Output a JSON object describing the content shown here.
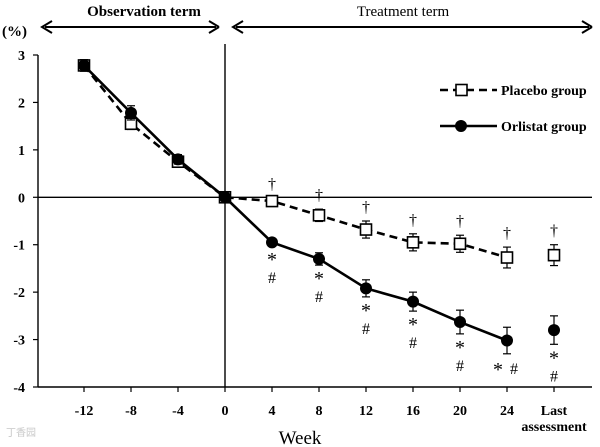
{
  "watermark": "丁香园",
  "chart_data": {
    "type": "line",
    "y_unit_label": "(%)",
    "xlabel": "Week",
    "ylabel": "",
    "ylim": [
      -4,
      3
    ],
    "yticks": [
      3,
      2,
      1,
      0,
      -1,
      -2,
      -3,
      -4
    ],
    "categories": [
      "-12",
      "-8",
      "-4",
      "0",
      "4",
      "8",
      "12",
      "16",
      "20",
      "24",
      "Last assessment"
    ],
    "period_labels": {
      "observation": "Observation term",
      "treatment": "Treatment term"
    },
    "legend_position": "top-right",
    "series": [
      {
        "name": "Placebo group",
        "style": "dashed",
        "marker": "open-square",
        "connect_last": false,
        "values": [
          2.78,
          1.55,
          0.75,
          0.0,
          -0.08,
          -0.38,
          -0.68,
          -0.95,
          -0.98,
          -1.27,
          -1.22
        ],
        "err": [
          0.12,
          0.12,
          0.1,
          0.0,
          0.07,
          0.13,
          0.18,
          0.18,
          0.18,
          0.22,
          0.22
        ],
        "annotations": [
          null,
          null,
          null,
          null,
          "†",
          "†",
          "†",
          "†",
          "†",
          "†",
          "†"
        ]
      },
      {
        "name": "Orlistat group",
        "style": "solid",
        "marker": "filled-circle",
        "connect_last": false,
        "values": [
          2.78,
          1.78,
          0.8,
          0.0,
          -0.95,
          -1.3,
          -1.92,
          -2.2,
          -2.63,
          -3.02,
          -2.8
        ],
        "err": [
          0.12,
          0.15,
          0.1,
          0.0,
          0.08,
          0.13,
          0.18,
          0.2,
          0.25,
          0.28,
          0.3
        ],
        "annotations": [
          null,
          null,
          null,
          null,
          "*#",
          "*#",
          "*#",
          "*#",
          "*#",
          "*#",
          "*#"
        ]
      }
    ]
  }
}
